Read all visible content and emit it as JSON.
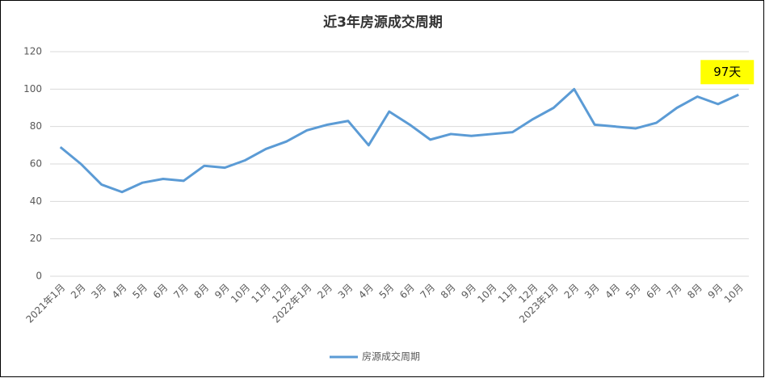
{
  "chart_data": {
    "type": "line",
    "title": "近3年房源成交周期",
    "categories": [
      "2021年1月",
      "2月",
      "3月",
      "4月",
      "5月",
      "6月",
      "7月",
      "8月",
      "9月",
      "10月",
      "11月",
      "12月",
      "2022年1月",
      "2月",
      "3月",
      "4月",
      "5月",
      "6月",
      "7月",
      "8月",
      "9月",
      "10月",
      "11月",
      "12月",
      "2023年1月",
      "2月",
      "3月",
      "4月",
      "5月",
      "6月",
      "7月",
      "8月",
      "9月",
      "10月"
    ],
    "series": [
      {
        "name": "房源成交周期",
        "color": "#5b9bd5",
        "values": [
          69,
          60,
          49,
          45,
          50,
          52,
          51,
          59,
          58,
          62,
          68,
          72,
          78,
          81,
          83,
          70,
          88,
          81,
          73,
          76,
          75,
          76,
          77,
          84,
          90,
          100,
          81,
          80,
          79,
          82,
          90,
          96,
          92,
          97
        ]
      }
    ],
    "annotation": "97天",
    "ylim": [
      0,
      120
    ],
    "yticks": [
      0,
      20,
      40,
      60,
      80,
      100,
      120
    ],
    "grid": true,
    "legend": "bottom"
  }
}
